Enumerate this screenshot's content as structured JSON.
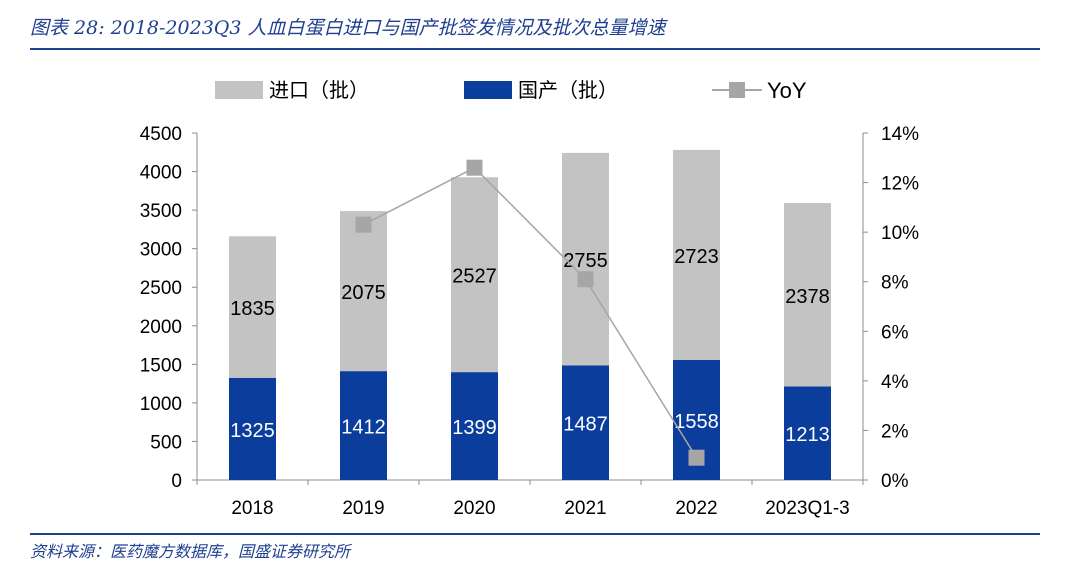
{
  "header": {
    "title": "图表 28:  2018-2023Q3 人血白蛋白进口与国产批签发情况及批次总量增速"
  },
  "footer": {
    "source": "资料来源：医药魔方数据库，国盛证券研究所"
  },
  "chart_data": {
    "type": "bar",
    "stacked": true,
    "categories": [
      "2018",
      "2019",
      "2020",
      "2021",
      "2022",
      "2023Q1-3"
    ],
    "series": [
      {
        "name": "国产（批）",
        "values": [
          1325,
          1412,
          1399,
          1487,
          1558,
          1213
        ],
        "color": "#0a3d9c",
        "label_color": "#ffffff"
      },
      {
        "name": "进口（批）",
        "values": [
          1835,
          2075,
          2527,
          2755,
          2723,
          2378
        ],
        "color": "#c3c3c3",
        "label_color": "#000000"
      }
    ],
    "line_series": {
      "name": "YoY",
      "axis": "right",
      "values": [
        null,
        0.103,
        0.126,
        0.081,
        0.009,
        null
      ],
      "color": "#a6a6a6"
    },
    "left_axis": {
      "ylim": [
        0,
        4500
      ],
      "ticks": [
        0,
        500,
        1000,
        1500,
        2000,
        2500,
        3000,
        3500,
        4000,
        4500
      ]
    },
    "right_axis": {
      "ylim": [
        0,
        0.14
      ],
      "ticks": [
        "0%",
        "2%",
        "4%",
        "6%",
        "8%",
        "10%",
        "12%",
        "14%"
      ]
    },
    "legend": {
      "position": "top",
      "order": [
        "进口（批）",
        "国产（批）",
        "YoY"
      ]
    },
    "grid": false
  }
}
